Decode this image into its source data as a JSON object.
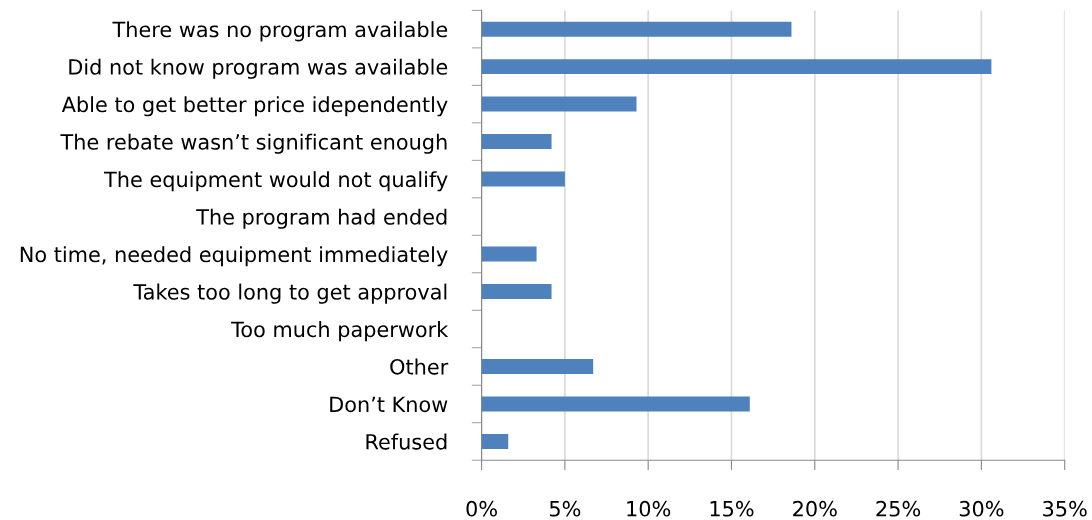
{
  "chart_data": {
    "type": "bar",
    "orientation": "horizontal",
    "categories": [
      "There was no program available",
      "Did not know program was available",
      "Able to get better price idependently",
      "The rebate wasn’t significant enough",
      "The equipment would not qualify",
      "The program had ended",
      "No time, needed equipment immediately",
      "Takes too long to get approval",
      "Too much paperwork",
      "Other",
      "Don’t Know",
      "Refused"
    ],
    "values": [
      18.6,
      30.6,
      9.3,
      4.2,
      5.0,
      0,
      3.3,
      4.2,
      0,
      6.7,
      16.1,
      1.6
    ],
    "color": "#4f81bd",
    "xlim": [
      0,
      35
    ],
    "xticks": [
      {
        "value": 0,
        "label": "0%"
      },
      {
        "value": 5,
        "label": "5%"
      },
      {
        "value": 10,
        "label": "10%"
      },
      {
        "value": 15,
        "label": "15%"
      },
      {
        "value": 20,
        "label": "20%"
      },
      {
        "value": 25,
        "label": "25%"
      },
      {
        "value": 30,
        "label": "30%"
      },
      {
        "value": 35,
        "label": "35%"
      }
    ],
    "grid": "x"
  }
}
